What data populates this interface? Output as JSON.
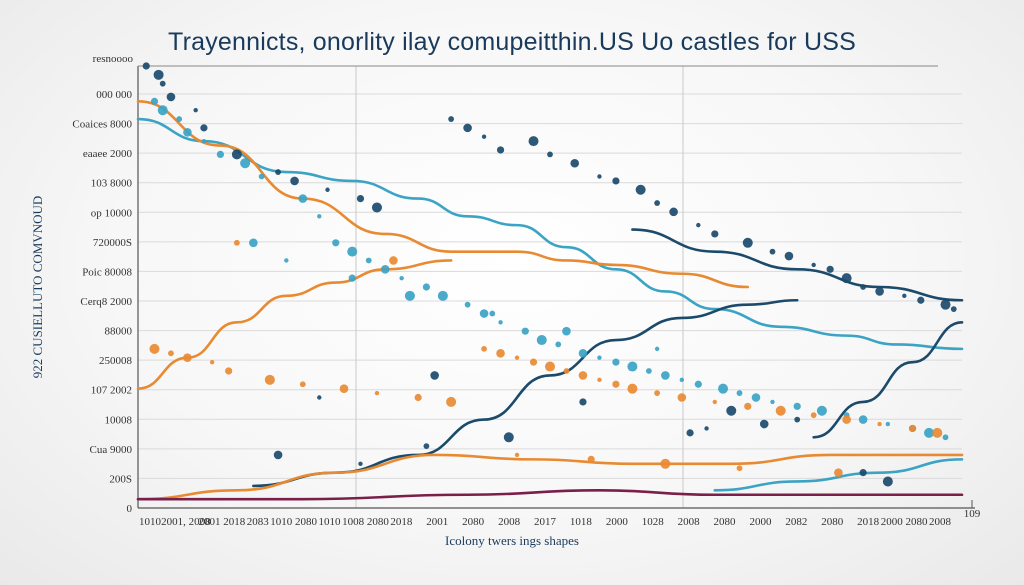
{
  "chart_data": {
    "type": "line",
    "title": "Trayennicts, onorlity ilay comupeitthin.US Uo castles for USS",
    "corner_label": "resnoooo",
    "xlabel": "Icolony twers ings shapes",
    "ylabel": "922 CUSIELLUTO COMVNOUD",
    "right_label": "109",
    "y_tick_labels": [
      "000 000",
      "Coaices 8000",
      "eaaee 2000",
      "103 8000",
      "op 10000",
      "720000S",
      "Poic 80008",
      "Cerq8 2000",
      "88000",
      "250008",
      "107 2002",
      "10008",
      "Cua 9000",
      "200S",
      "0"
    ],
    "x_tick_labels": [
      "1010",
      "2001, 2008",
      "2001 2018",
      "2083",
      "1010 2080",
      "1010",
      "1008 2080",
      "2018",
      "2001",
      "2080",
      "2008",
      "2017",
      "1018",
      "2000",
      "1028",
      "2008",
      "2080",
      "2000",
      "2082",
      "2080",
      "2018",
      "2000 2080",
      "2008"
    ],
    "x_range": [
      0,
      100
    ],
    "y_range": [
      0,
      100
    ],
    "series": [
      {
        "name": "teal-decline",
        "color": "#3ba3c4",
        "style": "line",
        "x": [
          0,
          8,
          18,
          26,
          34,
          40,
          46,
          52,
          58,
          64,
          70,
          78,
          86,
          92,
          100
        ],
        "y": [
          88,
          83,
          76,
          74,
          70,
          66,
          64,
          59,
          54,
          49,
          45,
          41,
          39,
          37,
          36
        ]
      },
      {
        "name": "navy-decline",
        "color": "#1b4a6b",
        "style": "line",
        "x": [
          60,
          70,
          80,
          90,
          100
        ],
        "y": [
          63,
          58,
          54,
          50,
          47
        ]
      },
      {
        "name": "orange-hump",
        "color": "#e88a32",
        "style": "line",
        "x": [
          0,
          10,
          20,
          30,
          38,
          46,
          52,
          58,
          66,
          74
        ],
        "y": [
          92,
          82,
          70,
          62,
          58,
          58,
          56,
          55,
          53,
          50
        ]
      },
      {
        "name": "orange-rise",
        "color": "#e88a32",
        "style": "line",
        "x": [
          0,
          6,
          12,
          18,
          24,
          30,
          38
        ],
        "y": [
          27,
          34,
          42,
          48,
          51,
          54,
          56
        ]
      },
      {
        "name": "navy-rise",
        "color": "#1b4a6b",
        "style": "line",
        "x": [
          14,
          24,
          34,
          42,
          50,
          58,
          66,
          74,
          80
        ],
        "y": [
          5,
          8,
          12,
          20,
          30,
          38,
          43,
          46,
          47
        ]
      },
      {
        "name": "navy-late-rise",
        "color": "#1b4a6b",
        "style": "line",
        "x": [
          82,
          88,
          94,
          100
        ],
        "y": [
          16,
          24,
          33,
          42
        ]
      },
      {
        "name": "orange-low",
        "color": "#e88a32",
        "style": "line",
        "x": [
          0,
          12,
          24,
          36,
          48,
          60,
          72,
          84,
          100
        ],
        "y": [
          2,
          4,
          8,
          12,
          11,
          10,
          10,
          12,
          12
        ]
      },
      {
        "name": "teal-low-rise",
        "color": "#3ba3c4",
        "style": "line",
        "x": [
          70,
          80,
          90,
          100
        ],
        "y": [
          4,
          6,
          8,
          11
        ]
      },
      {
        "name": "maroon-baseline",
        "color": "#7a1f4a",
        "style": "line",
        "x": [
          0,
          20,
          40,
          56,
          70,
          84,
          100
        ],
        "y": [
          2,
          2,
          3,
          4,
          3,
          3,
          3
        ]
      },
      {
        "name": "navy-scatter",
        "color": "#1b4a6b",
        "style": "scatter",
        "x": [
          1,
          2.5,
          3,
          4,
          7,
          8,
          12,
          17,
          19,
          23,
          27,
          29,
          38,
          40,
          42,
          44,
          48,
          50,
          53,
          56,
          58,
          61,
          63,
          65,
          68,
          70,
          74,
          77,
          79,
          82,
          84,
          86,
          88,
          90,
          93,
          95,
          98,
          99,
          36,
          22,
          54,
          72,
          80,
          76,
          69,
          67,
          45,
          35,
          17,
          27,
          88,
          91
        ],
        "y": [
          100,
          98,
          96,
          93,
          90,
          86,
          80,
          76,
          74,
          72,
          70,
          68,
          88,
          86,
          84,
          81,
          83,
          80,
          78,
          75,
          74,
          72,
          69,
          67,
          64,
          62,
          60,
          58,
          57,
          55,
          54,
          52,
          50,
          49,
          48,
          47,
          46,
          45,
          30,
          25,
          24,
          22,
          20,
          19,
          18,
          17,
          16,
          14,
          12,
          10,
          8,
          6
        ]
      },
      {
        "name": "teal-scatter",
        "color": "#3ba3c4",
        "style": "scatter",
        "x": [
          2,
          3,
          5,
          6,
          8,
          10,
          13,
          15,
          20,
          22,
          24,
          26,
          28,
          30,
          32,
          35,
          37,
          40,
          42,
          44,
          47,
          49,
          51,
          54,
          56,
          58,
          60,
          62,
          64,
          66,
          68,
          71,
          73,
          75,
          77,
          80,
          83,
          86,
          88,
          91,
          94,
          96,
          98,
          14,
          18,
          26,
          33,
          43,
          52,
          63
        ],
        "y": [
          92,
          90,
          88,
          85,
          83,
          80,
          78,
          75,
          70,
          66,
          60,
          58,
          56,
          54,
          52,
          50,
          48,
          46,
          44,
          42,
          40,
          38,
          37,
          35,
          34,
          33,
          32,
          31,
          30,
          29,
          28,
          27,
          26,
          25,
          24,
          23,
          22,
          21,
          20,
          19,
          18,
          17,
          16,
          60,
          56,
          52,
          48,
          44,
          40,
          36
        ]
      },
      {
        "name": "orange-scatter",
        "color": "#e88a32",
        "style": "scatter",
        "x": [
          2,
          4,
          6,
          9,
          11,
          16,
          20,
          25,
          29,
          34,
          38,
          42,
          44,
          46,
          48,
          50,
          52,
          54,
          56,
          58,
          60,
          63,
          66,
          70,
          74,
          78,
          82,
          86,
          90,
          94,
          97,
          12,
          31,
          46,
          55,
          64,
          73,
          85
        ],
        "y": [
          36,
          35,
          34,
          33,
          31,
          29,
          28,
          27,
          26,
          25,
          24,
          36,
          35,
          34,
          33,
          32,
          31,
          30,
          29,
          28,
          27,
          26,
          25,
          24,
          23,
          22,
          21,
          20,
          19,
          18,
          17,
          60,
          56,
          12,
          11,
          10,
          9,
          8
        ]
      }
    ]
  }
}
